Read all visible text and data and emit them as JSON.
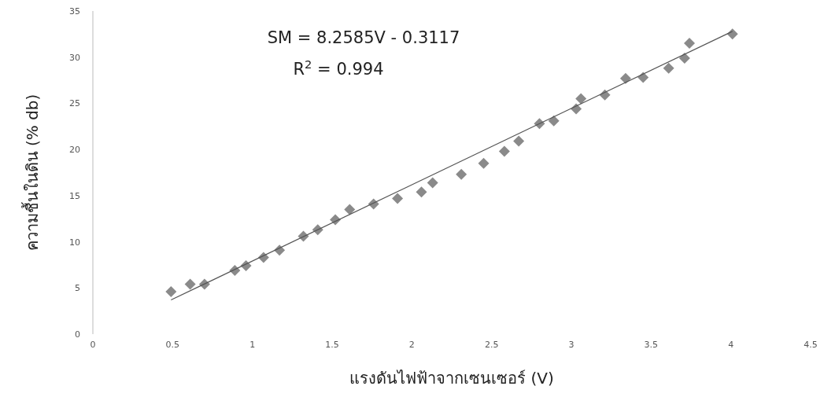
{
  "chart_data": {
    "type": "scatter",
    "xlabel": "แรงดันไฟฟ้าจากเซนเซอร์ (V)",
    "ylabel": "ความชื้นในดิน (% db)",
    "annotations": [
      "SM = 8.2585V - 0.3117",
      "R$^{2}$ = 0.994"
    ],
    "xlim": [
      0,
      4.5
    ],
    "ylim": [
      0,
      35
    ],
    "xticks": [
      0,
      0.5,
      1,
      1.5,
      2,
      2.5,
      3,
      3.5,
      4,
      4.5
    ],
    "yticks": [
      0,
      5,
      10,
      15,
      20,
      25,
      30,
      35
    ],
    "grid": false,
    "series": [
      {
        "marker": "diamond",
        "color": "#8a8a8a",
        "x": [
          0.49,
          0.61,
          0.7,
          0.89,
          0.96,
          1.07,
          1.17,
          1.32,
          1.41,
          1.52,
          1.61,
          1.76,
          1.91,
          2.06,
          2.13,
          2.31,
          2.45,
          2.58,
          2.67,
          2.8,
          2.89,
          3.03,
          3.06,
          3.21,
          3.34,
          3.45,
          3.61,
          3.71,
          3.74,
          4.01
        ],
        "values": [
          4.6,
          5.4,
          5.4,
          6.9,
          7.4,
          8.3,
          9.1,
          10.6,
          11.3,
          12.4,
          13.5,
          14.1,
          14.7,
          15.4,
          16.4,
          17.3,
          18.5,
          19.8,
          20.9,
          22.8,
          23.1,
          24.4,
          25.5,
          25.9,
          27.7,
          27.8,
          28.8,
          29.9,
          31.5,
          32.5
        ]
      },
      {
        "type": "line",
        "marker": "none",
        "color": "#555555",
        "x": [
          0.49,
          4.01
        ],
        "values": [
          3.7,
          32.8
        ]
      }
    ]
  }
}
